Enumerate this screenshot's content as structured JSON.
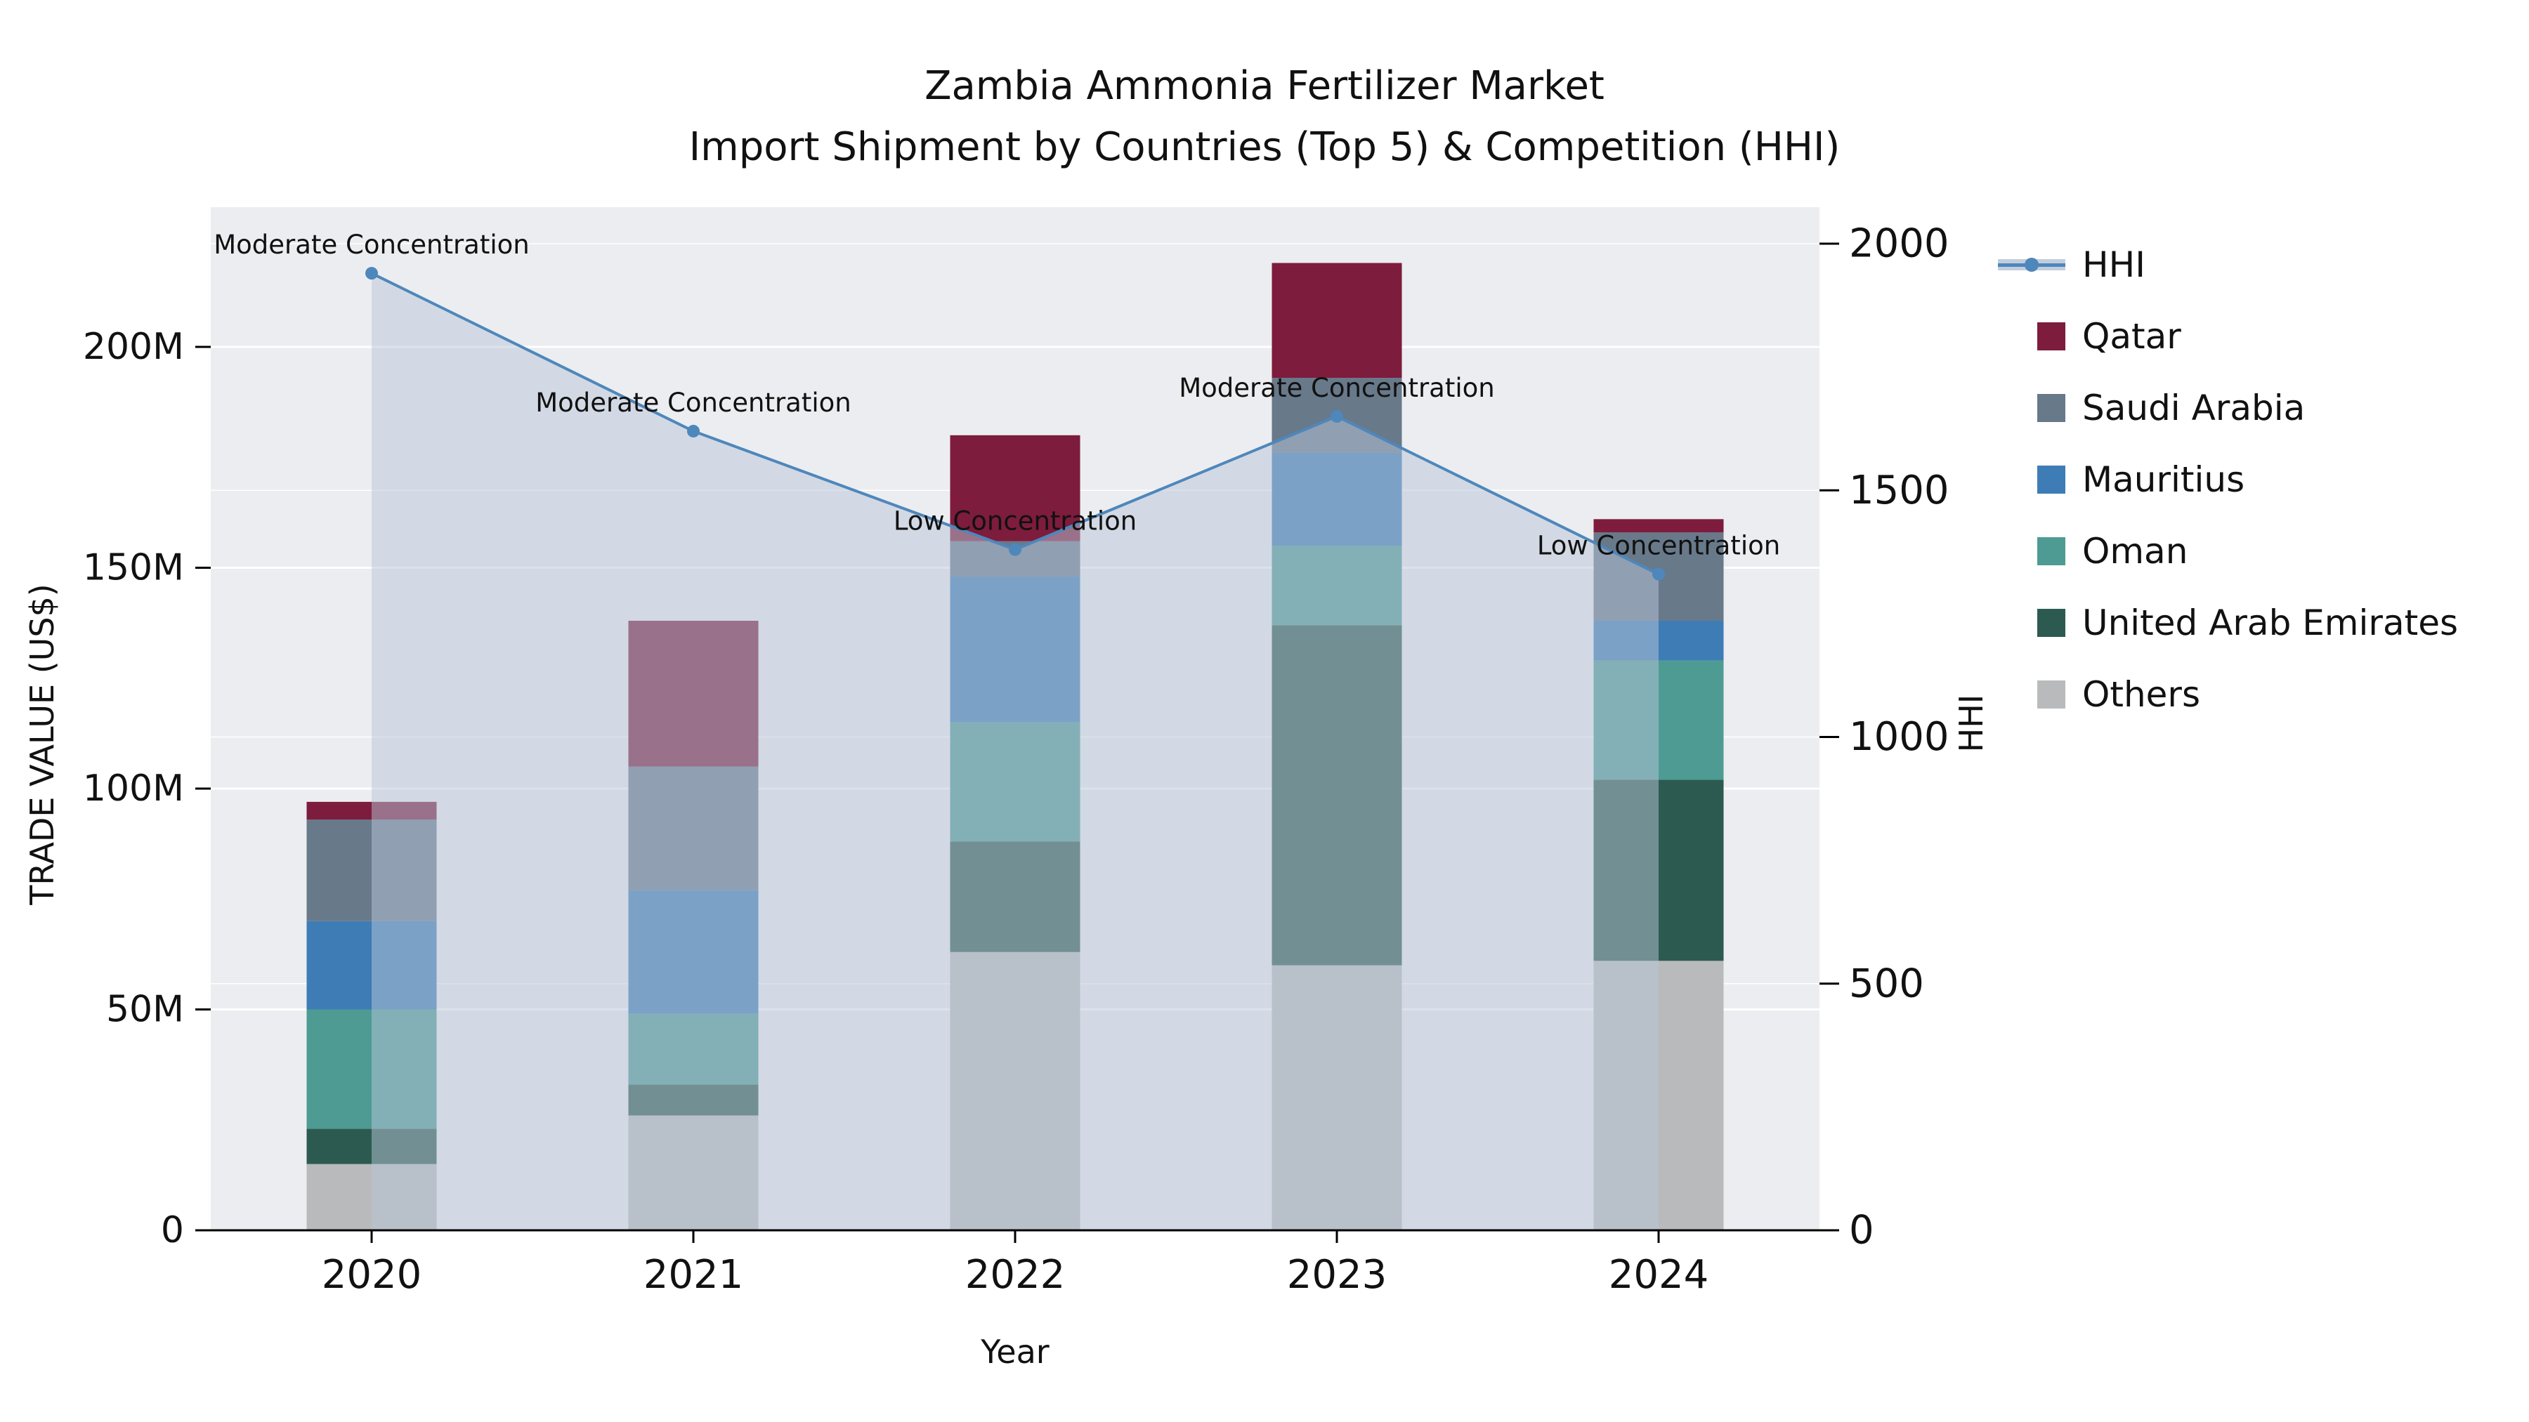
{
  "title": {
    "line1": "Zambia Ammonia Fertilizer Market",
    "line2": "Import Shipment by Countries (Top 5) & Competition (HHI)"
  },
  "axes": {
    "x_label": "Year",
    "y_left_label": "TRADE VALUE (US$)",
    "y_right_label": "HHI"
  },
  "chart_data": {
    "type": "bar",
    "subtype": "stacked-bars-with-hhi-line",
    "title": "Zambia Ammonia Fertilizer Market — Import Shipment by Countries (Top 5) & Competition (HHI)",
    "categories": [
      "2020",
      "2021",
      "2022",
      "2023",
      "2024"
    ],
    "value_unit": "millions USD",
    "series": [
      {
        "name": "Others",
        "color": "#b9babc",
        "values": [
          15,
          26,
          63,
          60,
          61
        ]
      },
      {
        "name": "United Arab Emirates",
        "color": "#2c5a51",
        "values": [
          8,
          7,
          25,
          77,
          41
        ]
      },
      {
        "name": "Oman",
        "color": "#4e9b94",
        "values": [
          27,
          16,
          27,
          18,
          27
        ]
      },
      {
        "name": "Mauritius",
        "color": "#3e7cb6",
        "values": [
          20,
          28,
          33,
          21,
          9
        ]
      },
      {
        "name": "Saudi Arabia",
        "color": "#68798a",
        "values": [
          23,
          28,
          8,
          17,
          20
        ]
      },
      {
        "name": "Qatar",
        "color": "#7d1c3c",
        "values": [
          4,
          33,
          24,
          26,
          3
        ]
      }
    ],
    "bar_totals": [
      97,
      138,
      180,
      219,
      161
    ],
    "line": {
      "name": "HHI",
      "color": "#4e87bb",
      "area_fill": "rgba(184,198,215,0.5)",
      "values": [
        1940,
        1620,
        1380,
        1650,
        1330
      ]
    },
    "annotations": [
      {
        "x": "2020",
        "text": "Moderate Concentration"
      },
      {
        "x": "2021",
        "text": "Moderate Concentration"
      },
      {
        "x": "2022",
        "text": "Low Concentration"
      },
      {
        "x": "2023",
        "text": "Moderate Concentration"
      },
      {
        "x": "2024",
        "text": "Low Concentration"
      }
    ],
    "xlabel": "Year",
    "ylabel_left": "TRADE VALUE (US$)",
    "ylabel_right": "HHI",
    "y_left": {
      "ticks": [
        0,
        50,
        100,
        150,
        200
      ],
      "labels": [
        "0",
        "50M",
        "100M",
        "150M",
        "200M"
      ],
      "lim": [
        0,
        231
      ]
    },
    "y_right": {
      "ticks": [
        0,
        500,
        1000,
        1500,
        2000
      ],
      "labels": [
        "0",
        "500",
        "1000",
        "1500",
        "2000"
      ],
      "lim": [
        0,
        2000
      ]
    },
    "legend_position": "right",
    "grid": true,
    "legend": [
      {
        "label": "HHI",
        "color": "#4e87bb",
        "type": "line"
      },
      {
        "label": "Qatar",
        "color": "#7d1c3c",
        "type": "swatch"
      },
      {
        "label": "Saudi Arabia",
        "color": "#68798a",
        "type": "swatch"
      },
      {
        "label": "Mauritius",
        "color": "#3e7cb6",
        "type": "swatch"
      },
      {
        "label": "Oman",
        "color": "#4e9b94",
        "type": "swatch"
      },
      {
        "label": "United Arab Emirates",
        "color": "#2c5a51",
        "type": "swatch"
      },
      {
        "label": "Others",
        "color": "#b9babc",
        "type": "swatch"
      }
    ],
    "colors": {
      "plot_background": "#ecedf0",
      "grid_color": "#ffffff",
      "axis_color": "#000000",
      "text_color": "#111111"
    }
  }
}
